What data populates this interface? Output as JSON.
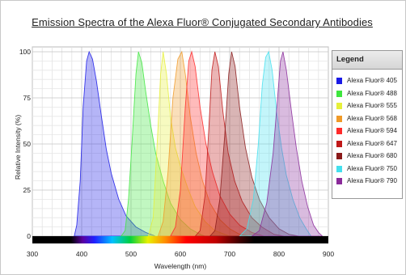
{
  "chart_data": {
    "type": "area",
    "title": "Emission Spectra of the Alexa Fluor® Conjugated Secondary Antibodies",
    "xlabel": "Wavelength (nm)",
    "ylabel": "Relative Intensity (%)",
    "xlim": [
      300,
      900
    ],
    "ylim": [
      0,
      100
    ],
    "xticks": [
      "300",
      "400",
      "500",
      "600",
      "700",
      "800",
      "900"
    ],
    "yticks": [
      "0",
      "25",
      "50",
      "75",
      "100"
    ],
    "grid": true,
    "legend_title": "Legend",
    "legend_position": "right",
    "series": [
      {
        "name": "Alexa Fluor® 405",
        "color": "#1a1ae6",
        "points": [
          [
            385,
            0
          ],
          [
            390,
            6
          ],
          [
            397,
            30
          ],
          [
            403,
            70
          ],
          [
            410,
            95
          ],
          [
            415,
            100
          ],
          [
            422,
            96
          ],
          [
            430,
            84
          ],
          [
            440,
            65
          ],
          [
            450,
            47
          ],
          [
            460,
            34
          ],
          [
            475,
            20
          ],
          [
            490,
            11
          ],
          [
            510,
            5
          ],
          [
            530,
            2
          ],
          [
            550,
            0
          ]
        ]
      },
      {
        "name": "Alexa Fluor® 488",
        "color": "#3ee63e",
        "points": [
          [
            480,
            0
          ],
          [
            488,
            3
          ],
          [
            495,
            20
          ],
          [
            503,
            55
          ],
          [
            510,
            88
          ],
          [
            515,
            100
          ],
          [
            522,
            94
          ],
          [
            530,
            78
          ],
          [
            540,
            60
          ],
          [
            550,
            45
          ],
          [
            565,
            30
          ],
          [
            580,
            18
          ],
          [
            600,
            9
          ],
          [
            620,
            4
          ],
          [
            640,
            1
          ],
          [
            650,
            0
          ]
        ]
      },
      {
        "name": "Alexa Fluor® 555",
        "color": "#e6f03a",
        "points": [
          [
            535,
            0
          ],
          [
            545,
            10
          ],
          [
            555,
            60
          ],
          [
            560,
            88
          ],
          [
            565,
            100
          ],
          [
            572,
            88
          ],
          [
            580,
            65
          ],
          [
            590,
            48
          ],
          [
            600,
            38
          ],
          [
            615,
            26
          ],
          [
            630,
            16
          ],
          [
            650,
            8
          ],
          [
            670,
            3
          ],
          [
            690,
            1
          ],
          [
            700,
            0
          ]
        ]
      },
      {
        "name": "Alexa Fluor® 568",
        "color": "#f09a28",
        "points": [
          [
            555,
            0
          ],
          [
            565,
            8
          ],
          [
            575,
            35
          ],
          [
            585,
            75
          ],
          [
            595,
            96
          ],
          [
            603,
            100
          ],
          [
            610,
            88
          ],
          [
            620,
            65
          ],
          [
            632,
            45
          ],
          [
            645,
            30
          ],
          [
            660,
            18
          ],
          [
            680,
            9
          ],
          [
            700,
            4
          ],
          [
            720,
            1
          ],
          [
            740,
            0
          ]
        ]
      },
      {
        "name": "Alexa Fluor® 594",
        "color": "#ff2a2a",
        "points": [
          [
            580,
            0
          ],
          [
            590,
            5
          ],
          [
            600,
            25
          ],
          [
            610,
            70
          ],
          [
            617,
            95
          ],
          [
            623,
            100
          ],
          [
            630,
            92
          ],
          [
            640,
            70
          ],
          [
            652,
            50
          ],
          [
            665,
            35
          ],
          [
            680,
            22
          ],
          [
            700,
            12
          ],
          [
            720,
            6
          ],
          [
            745,
            2
          ],
          [
            770,
            0
          ]
        ]
      },
      {
        "name": "Alexa Fluor® 647",
        "color": "#c01818",
        "points": [
          [
            630,
            0
          ],
          [
            640,
            3
          ],
          [
            650,
            22
          ],
          [
            658,
            60
          ],
          [
            664,
            90
          ],
          [
            670,
            100
          ],
          [
            677,
            92
          ],
          [
            686,
            68
          ],
          [
            697,
            45
          ],
          [
            710,
            30
          ],
          [
            725,
            19
          ],
          [
            745,
            10
          ],
          [
            765,
            5
          ],
          [
            790,
            1
          ],
          [
            810,
            0
          ]
        ]
      },
      {
        "name": "Alexa Fluor® 680",
        "color": "#8a1a1a",
        "points": [
          [
            660,
            0
          ],
          [
            670,
            3
          ],
          [
            680,
            20
          ],
          [
            690,
            55
          ],
          [
            698,
            88
          ],
          [
            704,
            100
          ],
          [
            711,
            92
          ],
          [
            720,
            70
          ],
          [
            732,
            48
          ],
          [
            745,
            32
          ],
          [
            760,
            20
          ],
          [
            780,
            10
          ],
          [
            800,
            4
          ],
          [
            820,
            1
          ],
          [
            840,
            0
          ]
        ]
      },
      {
        "name": "Alexa Fluor® 750",
        "color": "#44e0ee",
        "points": [
          [
            720,
            0
          ],
          [
            735,
            4
          ],
          [
            748,
            20
          ],
          [
            758,
            50
          ],
          [
            766,
            82
          ],
          [
            773,
            97
          ],
          [
            779,
            100
          ],
          [
            786,
            90
          ],
          [
            795,
            68
          ],
          [
            805,
            48
          ],
          [
            815,
            33
          ],
          [
            828,
            20
          ],
          [
            842,
            10
          ],
          [
            855,
            4
          ],
          [
            865,
            0
          ]
        ]
      },
      {
        "name": "Alexa Fluor® 790",
        "color": "#8a2a9a",
        "points": [
          [
            745,
            0
          ],
          [
            760,
            3
          ],
          [
            775,
            18
          ],
          [
            788,
            45
          ],
          [
            797,
            75
          ],
          [
            803,
            95
          ],
          [
            808,
            100
          ],
          [
            815,
            90
          ],
          [
            825,
            68
          ],
          [
            835,
            48
          ],
          [
            846,
            30
          ],
          [
            858,
            16
          ],
          [
            870,
            6
          ],
          [
            880,
            2
          ],
          [
            888,
            0
          ]
        ]
      }
    ]
  }
}
